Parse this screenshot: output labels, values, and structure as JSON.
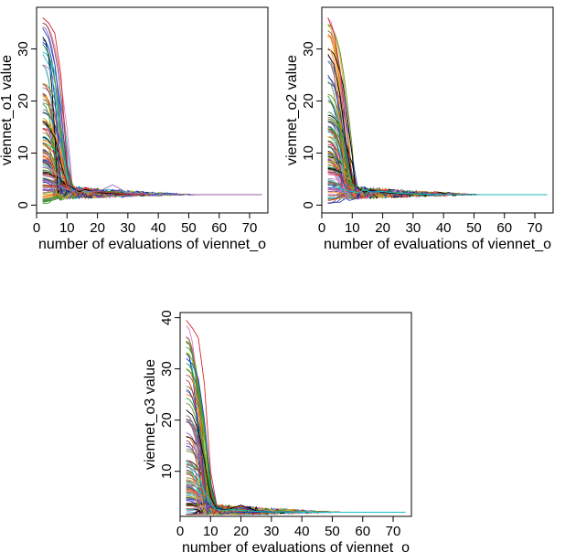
{
  "chart_data": [
    {
      "type": "line",
      "xlabel": "number of evaluations of viennet_o",
      "ylabel": "viennet_o1 value",
      "xticks": [
        0,
        10,
        20,
        30,
        40,
        50,
        60,
        70
      ],
      "yticks": [
        0,
        10,
        20,
        30
      ],
      "xlim": [
        0,
        76
      ],
      "ylim": [
        -1.5,
        38
      ],
      "converge_value": 2.0,
      "x_end": 74,
      "n_series": 110,
      "series": [
        {
          "color": "#d62728",
          "x": [
            2,
            4,
            6,
            8,
            10,
            12,
            14,
            16,
            20,
            25,
            30,
            40,
            50,
            60,
            74
          ],
          "y": [
            36,
            35,
            33,
            25,
            8,
            3.5,
            2.5,
            3.2,
            2.4,
            2.7,
            2.1,
            2.0,
            2.0,
            2.0,
            2.0
          ]
        },
        {
          "color": "#1f3fbf",
          "x": [
            2,
            4,
            6,
            8,
            10,
            12,
            14,
            16,
            20,
            25,
            30,
            40,
            50,
            60,
            74
          ],
          "y": [
            34,
            32,
            27,
            18,
            7,
            3,
            3.4,
            2.6,
            2.8,
            2.2,
            2.3,
            2.0,
            2.0,
            2.0,
            2.0
          ]
        },
        {
          "color": "#2ca02c",
          "x": [
            2,
            4,
            6,
            8,
            10,
            12,
            14,
            16,
            20,
            25,
            30,
            40,
            50,
            60,
            74
          ],
          "y": [
            31,
            29,
            24,
            14,
            6,
            3.8,
            2.4,
            3.0,
            2.5,
            2.6,
            2.1,
            2.0,
            2.0,
            2.0,
            2.0
          ]
        },
        {
          "color": "#17becf",
          "x": [
            2,
            4,
            6,
            8,
            10,
            12,
            14,
            16,
            20,
            25,
            30,
            40,
            50,
            60,
            74
          ],
          "y": [
            29,
            27,
            22,
            12,
            5,
            2.8,
            3.6,
            2.5,
            2.7,
            2.3,
            2.2,
            2.0,
            2.0,
            2.0,
            2.0
          ]
        },
        {
          "color": "#000000",
          "x": [
            2,
            4,
            6,
            8,
            10,
            12,
            14,
            16,
            20,
            25,
            30,
            40,
            50,
            60,
            74
          ],
          "y": [
            16,
            15,
            13,
            8,
            4,
            3.2,
            2.6,
            3.0,
            2.4,
            2.2,
            2.1,
            2.0,
            2.0,
            2.0,
            2.0
          ]
        },
        {
          "color": "#d62728",
          "x": [
            2,
            4,
            6,
            8,
            10,
            12,
            14,
            16,
            20,
            25,
            30,
            40,
            50,
            60,
            74
          ],
          "y": [
            12,
            11,
            10,
            7,
            4.5,
            3.6,
            2.8,
            3.4,
            2.6,
            2.4,
            2.1,
            2.0,
            2.0,
            2.0,
            2.0
          ]
        },
        {
          "color": "#9467bd",
          "x": [
            2,
            4,
            6,
            8,
            10,
            12,
            14,
            16,
            20,
            25,
            30,
            40,
            50,
            60,
            74
          ],
          "y": [
            5,
            4.6,
            4.2,
            3.5,
            3.0,
            2.6,
            3.1,
            2.7,
            2.5,
            3.9,
            2.3,
            2.0,
            2.0,
            2.0,
            2.0
          ]
        }
      ]
    },
    {
      "type": "line",
      "xlabel": "number of evaluations of viennet_o",
      "ylabel": "viennet_o2 value",
      "xticks": [
        0,
        10,
        20,
        30,
        40,
        50,
        60,
        70
      ],
      "yticks": [
        0,
        10,
        20,
        30
      ],
      "xlim": [
        0,
        76
      ],
      "ylim": [
        -1.5,
        38
      ],
      "converge_value": 2.0,
      "x_end": 74,
      "n_series": 110,
      "series": [
        {
          "color": "#d62728",
          "x": [
            2,
            4,
            6,
            8,
            10,
            12,
            14,
            16,
            20,
            25,
            30,
            40,
            50,
            60,
            74
          ],
          "y": [
            36,
            33,
            26,
            15,
            5,
            3.0,
            2.6,
            3.1,
            2.4,
            2.3,
            2.1,
            2.0,
            2.0,
            2.0,
            2.0
          ]
        },
        {
          "color": "#000000",
          "x": [
            2,
            4,
            6,
            8,
            10,
            12,
            14,
            16,
            20,
            25,
            30,
            40,
            50,
            60,
            74
          ],
          "y": [
            29,
            27,
            21,
            12,
            4.5,
            3.3,
            2.5,
            2.9,
            2.4,
            2.2,
            2.1,
            2.0,
            2.0,
            2.0,
            2.0
          ]
        },
        {
          "color": "#1f3fbf",
          "x": [
            2,
            4,
            6,
            8,
            10,
            12,
            14,
            16,
            20,
            25,
            30,
            40,
            50,
            60,
            74
          ],
          "y": [
            25,
            23,
            18,
            10,
            4,
            3.0,
            3.5,
            2.6,
            2.7,
            2.3,
            2.2,
            2.0,
            2.0,
            2.0,
            2.0
          ]
        },
        {
          "color": "#2ca02c",
          "x": [
            2,
            4,
            6,
            8,
            10,
            12,
            14,
            16,
            20,
            25,
            30,
            40,
            50,
            60,
            74
          ],
          "y": [
            21,
            19,
            15,
            9,
            4,
            3.5,
            2.7,
            3.2,
            2.6,
            2.4,
            2.1,
            2.0,
            2.0,
            2.0,
            2.0
          ]
        },
        {
          "color": "#17becf",
          "x": [
            2,
            4,
            6,
            8,
            10,
            12,
            14,
            16,
            20,
            25,
            30,
            40,
            50,
            60,
            74
          ],
          "y": [
            4,
            3.6,
            3.2,
            2.8,
            2.6,
            2.4,
            3.0,
            2.5,
            2.6,
            2.3,
            2.2,
            2.0,
            2.0,
            2.0,
            2.0
          ]
        }
      ]
    },
    {
      "type": "line",
      "xlabel": "number of evaluations of viennet_o",
      "ylabel": "viennet_o3 value",
      "xticks": [
        0,
        10,
        20,
        30,
        40,
        50,
        60,
        70
      ],
      "yticks": [
        10,
        20,
        30,
        40
      ],
      "xlim": [
        0,
        76
      ],
      "ylim": [
        1.2,
        41
      ],
      "converge_value": 2.0,
      "x_end": 74,
      "n_series": 110,
      "series": [
        {
          "color": "#d62728",
          "x": [
            2,
            4,
            6,
            8,
            10,
            12,
            14,
            16,
            20,
            25,
            30,
            40,
            50,
            60,
            74
          ],
          "y": [
            39.5,
            38,
            36,
            27,
            10,
            3.5,
            2.5,
            2.8,
            3.2,
            2.3,
            2.1,
            2.0,
            2.0,
            2.0,
            2.0
          ]
        },
        {
          "color": "#1f3fbf",
          "x": [
            2,
            4,
            6,
            8,
            10,
            12,
            14,
            16,
            20,
            25,
            30,
            40,
            50,
            60,
            74
          ],
          "y": [
            32,
            31,
            28,
            20,
            8,
            3.2,
            2.6,
            2.4,
            2.9,
            2.3,
            2.1,
            2.0,
            2.0,
            2.0,
            2.0
          ]
        },
        {
          "color": "#2ca02c",
          "x": [
            2,
            4,
            6,
            8,
            10,
            12,
            14,
            16,
            20,
            25,
            30,
            40,
            50,
            60,
            74
          ],
          "y": [
            30,
            29,
            26,
            18,
            7,
            3.0,
            2.5,
            2.7,
            2.4,
            2.2,
            2.1,
            2.0,
            2.0,
            2.0,
            2.0
          ]
        },
        {
          "color": "#000000",
          "x": [
            2,
            4,
            6,
            8,
            10,
            12,
            14,
            16,
            20,
            25,
            30,
            40,
            50,
            60,
            74
          ],
          "y": [
            22,
            21,
            18,
            12,
            5,
            2.8,
            2.5,
            2.6,
            3.4,
            2.3,
            2.1,
            2.0,
            2.0,
            2.0,
            2.0
          ]
        },
        {
          "color": "#17becf",
          "x": [
            2,
            4,
            6,
            8,
            10,
            12,
            14,
            16,
            20,
            25,
            30,
            40,
            50,
            60,
            74
          ],
          "y": [
            12,
            11,
            9,
            6,
            3.5,
            2.6,
            2.4,
            2.5,
            2.4,
            2.2,
            2.1,
            2.0,
            2.0,
            2.0,
            2.0
          ]
        }
      ]
    }
  ],
  "palette": [
    "#d62728",
    "#1f3fbf",
    "#2ca02c",
    "#17becf",
    "#000000",
    "#9467bd",
    "#e377c2",
    "#8c564b",
    "#7f7f7f",
    "#bcbd22",
    "#ff7f0e",
    "#6b8e23"
  ]
}
